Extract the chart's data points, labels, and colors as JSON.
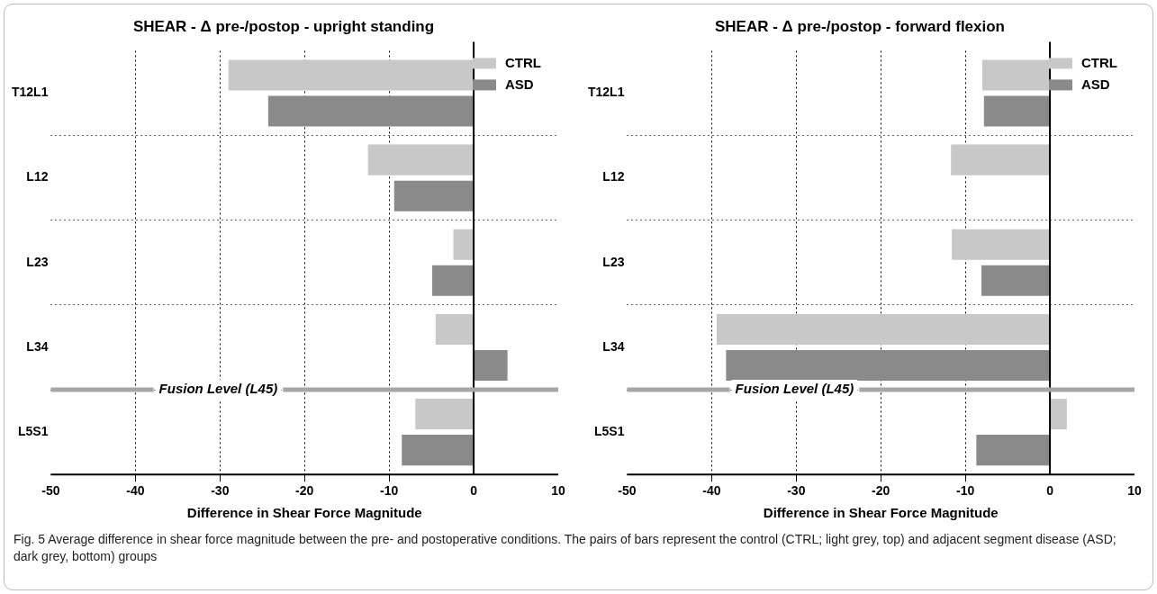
{
  "chart_data": [
    {
      "type": "bar",
      "orientation": "horizontal",
      "title": "SHEAR - Δ pre-/postop - upright standing",
      "xlabel": "Difference in Shear Force Magnitude",
      "categories": [
        "T12L1",
        "L12",
        "L23",
        "L34",
        "L5S1"
      ],
      "series": [
        {
          "name": "CTRL",
          "color": "#c8c8c8",
          "values": [
            -29,
            -12.5,
            -2.4,
            -4.5,
            -6.9
          ]
        },
        {
          "name": "ASD",
          "color": "#8a8a8a",
          "values": [
            -24.3,
            -9.4,
            -4.9,
            4,
            -8.5
          ]
        }
      ],
      "xlim": [
        -50,
        10
      ],
      "xticks": [
        -50,
        -40,
        -30,
        -20,
        -10,
        0,
        10
      ],
      "grid": true,
      "legend": "top right",
      "annotations": [
        "Fusion Level (L45)",
        "Fig. 5 Average difference in shear force magnitude between the pre- and postoperative conditions. The pairs of bars represent the control (CTRL; light grey, top) and adjacent segment disease (ASD; dark grey, bottom) groups"
      ]
    },
    {
      "type": "bar",
      "orientation": "horizontal",
      "title": "SHEAR - Δ pre-/postop - forward flexion",
      "xlabel": "Difference in Shear Force Magnitude",
      "categories": [
        "T12L1",
        "L12",
        "L23",
        "L34",
        "L5S1"
      ],
      "series": [
        {
          "name": "CTRL",
          "color": "#c8c8c8",
          "values": [
            -8,
            -11.7,
            -11.6,
            -39.4,
            2
          ]
        },
        {
          "name": "ASD",
          "color": "#8a8a8a",
          "values": [
            -7.8,
            0,
            -8.1,
            -38.3,
            -8.7
          ]
        }
      ],
      "xlim": [
        -50,
        10
      ],
      "xticks": [
        -50,
        -40,
        -30,
        -20,
        -10,
        0,
        10
      ],
      "grid": true,
      "legend": "top right",
      "annotations": [
        "Fusion Level (L45)"
      ]
    }
  ]
}
